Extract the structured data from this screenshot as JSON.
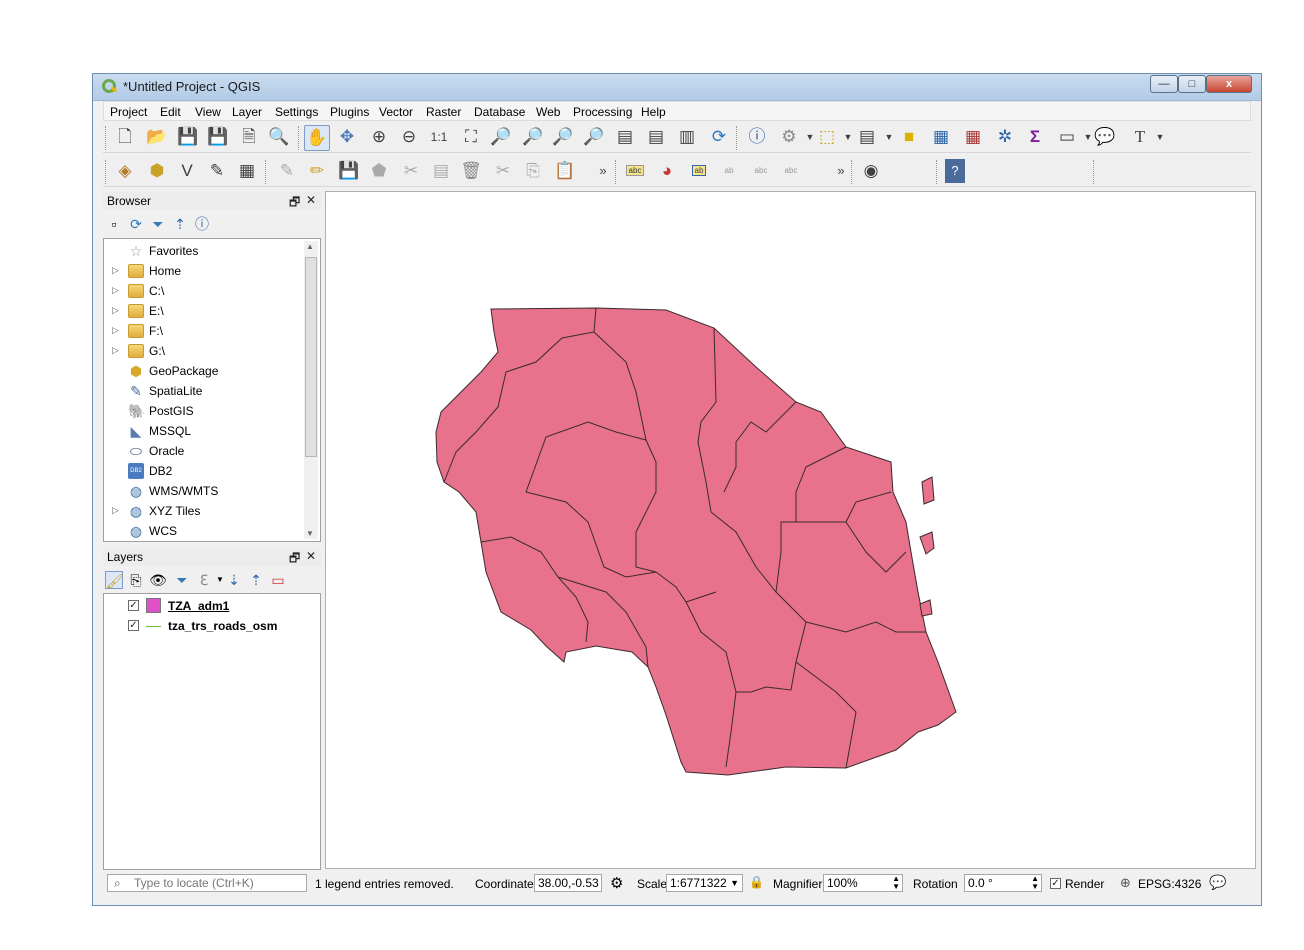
{
  "window": {
    "title": "*Untitled Project - QGIS",
    "buttons": {
      "minimize": "—",
      "maximize": "□",
      "close": "x"
    }
  },
  "menu": [
    "Project",
    "Edit",
    "View",
    "Layer",
    "Settings",
    "Plugins",
    "Vector",
    "Raster",
    "Database",
    "Web",
    "Processing",
    "Help"
  ],
  "toolbar": {
    "overflow": "»"
  },
  "browser": {
    "title": "Browser",
    "items": [
      {
        "label": "Favorites",
        "icon": "star-icon",
        "expand": false
      },
      {
        "label": "Home",
        "icon": "folder-icon",
        "expand": true
      },
      {
        "label": "C:\\",
        "icon": "folder-icon",
        "expand": true
      },
      {
        "label": "E:\\",
        "icon": "folder-icon",
        "expand": true
      },
      {
        "label": "F:\\",
        "icon": "folder-icon",
        "expand": true
      },
      {
        "label": "G:\\",
        "icon": "folder-icon",
        "expand": true
      },
      {
        "label": "GeoPackage",
        "icon": "geopackage-icon",
        "expand": false
      },
      {
        "label": "SpatiaLite",
        "icon": "spatialite-icon",
        "expand": false
      },
      {
        "label": "PostGIS",
        "icon": "postgis-icon",
        "expand": false
      },
      {
        "label": "MSSQL",
        "icon": "mssql-icon",
        "expand": false
      },
      {
        "label": "Oracle",
        "icon": "oracle-icon",
        "expand": false
      },
      {
        "label": "DB2",
        "icon": "db2-icon",
        "expand": false
      },
      {
        "label": "WMS/WMTS",
        "icon": "globe-icon",
        "expand": false
      },
      {
        "label": "XYZ Tiles",
        "icon": "globe-icon",
        "expand": true
      },
      {
        "label": "WCS",
        "icon": "globe-icon",
        "expand": false
      }
    ],
    "db2_badge": "DB2"
  },
  "layers": {
    "title": "Layers",
    "items": [
      {
        "label": "TZA_adm1",
        "checked": true,
        "swatch": "#e050c8"
      },
      {
        "label": "tza_trs_roads_osm",
        "checked": true,
        "swatch": "#6abf3a"
      }
    ]
  },
  "map": {
    "fill": "#e8728b",
    "stroke": "#3a2a2e"
  },
  "status": {
    "locate_placeholder": "Type to locate (Ctrl+K)",
    "message": "1 legend entries removed.",
    "coordinate_label": "Coordinate",
    "coordinate_value": "38.00,-0.53",
    "scale_label": "Scale",
    "scale_value": "1:6771322",
    "magnifier_label": "Magnifier",
    "magnifier_value": "100%",
    "rotation_label": "Rotation",
    "rotation_value": "0.0 °",
    "render_label": "Render",
    "crs": "EPSG:4326"
  }
}
